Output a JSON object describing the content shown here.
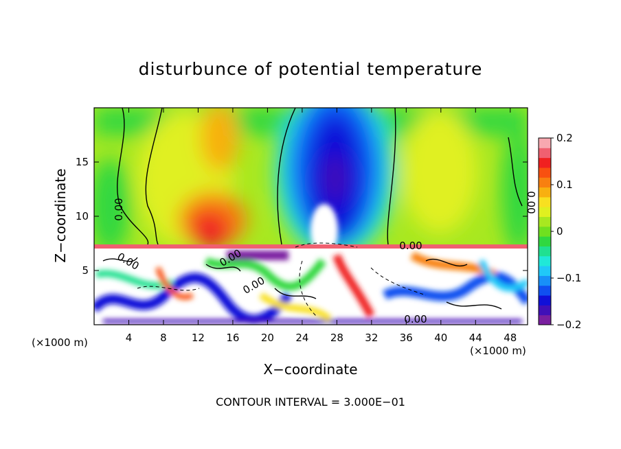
{
  "chart_data": {
    "type": "heatmap",
    "title": "disturbunce of potential temperature",
    "xlabel": "X−coordinate",
    "ylabel": "Z−coordinate",
    "x_unit": "(×1000 m)",
    "footer": "CONTOUR INTERVAL = 3.000E−01",
    "xlim": [
      0,
      50
    ],
    "ylim": [
      0,
      20
    ],
    "x_ticks": [
      4,
      8,
      12,
      16,
      20,
      24,
      28,
      32,
      36,
      40,
      44,
      48
    ],
    "y_ticks": [
      5,
      10,
      15
    ],
    "colorbar": {
      "range": [
        -0.2,
        0.2
      ],
      "tick_values": [
        0.2,
        0.1,
        0,
        -0.1,
        -0.2
      ],
      "tick_labels": [
        "0.2",
        "0.1",
        "0",
        "−0.1",
        "−0.2"
      ],
      "colors": [
        "#7a1fa0",
        "#4010b8",
        "#1010d8",
        "#1050f0",
        "#1890f8",
        "#20c8f8",
        "#20e8d8",
        "#20e090",
        "#30d840",
        "#70e020",
        "#a8e820",
        "#e0f020",
        "#f8e020",
        "#f8b010",
        "#f88010",
        "#f85010",
        "#f02020",
        "#f06070",
        "#f8a8b0"
      ]
    },
    "contour_labels": [
      "0.00",
      "0.00",
      "0.00",
      "0.00",
      "0.00",
      "0.00",
      "0.00"
    ],
    "background_colors": {
      "upper_field": "#a8e820",
      "cold_core": "#1010d8",
      "warm_core": "#f85010",
      "lower_turbulent": "#ffffff"
    }
  }
}
